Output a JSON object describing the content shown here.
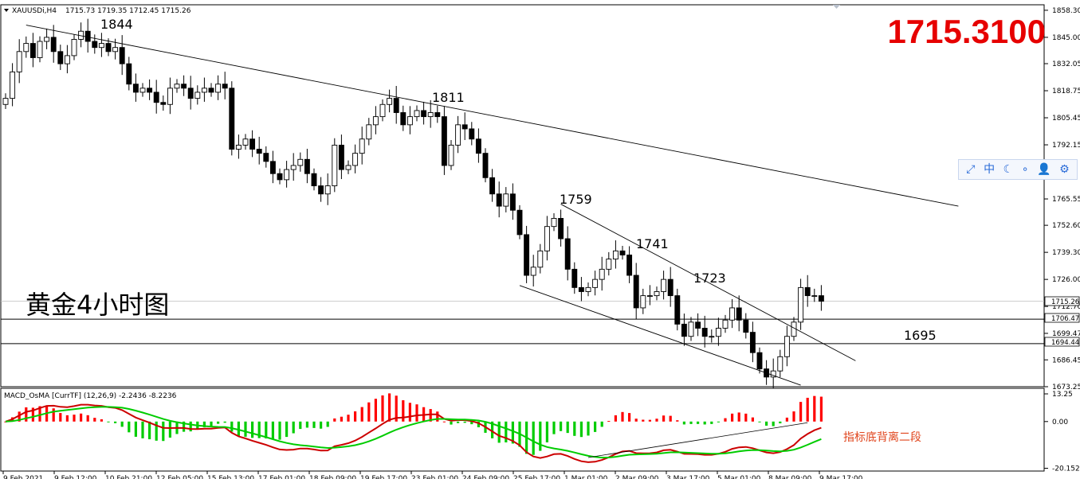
{
  "header": {
    "symbol": "XAUUSDi,H4",
    "ohlc": "1715.73 1719.35 1712.45 1715.26"
  },
  "overlay": {
    "price_big": "1715.3100",
    "chart_label": "黄金4小时图",
    "divergence_note": "指标底背离二段"
  },
  "price_tags": {
    "current": "1715.26",
    "level1": "1706.47",
    "level2": "1694.44"
  },
  "toolbar": {
    "icons": [
      "resize-icon",
      "chinese-char-icon",
      "moon-icon",
      "dots-icon",
      "user-icon",
      "gear-icon"
    ],
    "chinese_label": "中"
  },
  "colors": {
    "bull_candle": "#ffffff",
    "bear_candle": "#000000",
    "macd_hist": "#ff0000",
    "macd_line": "#cc0000",
    "signal_line": "#00cc00",
    "annotation": "#e60000",
    "label_orange": "#e0461e"
  },
  "chart_data": [
    {
      "type": "candlestick",
      "timeframe": "H4",
      "price_axis": {
        "ylim": [
          1673.25,
          1861
        ],
        "ticks": [
          "1858.30",
          "1845.00",
          "1832.05",
          "1818.75",
          "1805.45",
          "1792.15",
          "1765.55",
          "1752.60",
          "1739.30",
          "1726.00",
          "1712.70",
          "1699.47",
          "1686.45",
          "1673.25"
        ]
      },
      "time_axis_labels": [
        "9 Feb 2021",
        "9 Feb 12:00",
        "10 Feb 21:00",
        "12 Feb 05:00",
        "15 Feb 13:00",
        "17 Feb 01:00",
        "18 Feb 09:00",
        "19 Feb 17:00",
        "23 Feb 01:00",
        "24 Feb 09:00",
        "25 Feb 17:00",
        "1 Mar 01:00",
        "2 Mar 09:00",
        "3 Mar 17:00",
        "5 Mar 01:00",
        "8 Mar 09:00",
        "9 Mar 17:00"
      ],
      "annotations": [
        "1844",
        "1811",
        "1759",
        "1741",
        "1723",
        "1695"
      ],
      "horizontal_levels": [
        1715.26,
        1706.47,
        1694.44
      ],
      "closes": [
        1815,
        1828,
        1838,
        1842,
        1835,
        1843,
        1845,
        1838,
        1832,
        1836,
        1844,
        1848,
        1843,
        1840,
        1842,
        1838,
        1840,
        1832,
        1822,
        1818,
        1820,
        1818,
        1813,
        1812,
        1820,
        1822,
        1820,
        1815,
        1818,
        1820,
        1818,
        1822,
        1820,
        1790,
        1792,
        1795,
        1790,
        1788,
        1784,
        1778,
        1775,
        1780,
        1782,
        1785,
        1778,
        1772,
        1768,
        1772,
        1792,
        1780,
        1782,
        1788,
        1795,
        1802,
        1806,
        1812,
        1815,
        1808,
        1802,
        1806,
        1809,
        1806,
        1808,
        1806,
        1782,
        1792,
        1802,
        1800,
        1795,
        1788,
        1776,
        1768,
        1762,
        1768,
        1760,
        1748,
        1728,
        1732,
        1740,
        1752,
        1756,
        1746,
        1731,
        1722,
        1720,
        1722,
        1726,
        1731,
        1736,
        1740,
        1738,
        1728,
        1712,
        1718,
        1718,
        1720,
        1726,
        1718,
        1704,
        1698,
        1705,
        1702,
        1698,
        1698,
        1702,
        1706,
        1712,
        1706,
        1700,
        1690,
        1682,
        1678,
        1681,
        1688,
        1698,
        1705,
        1722,
        1718,
        1718,
        1715.26
      ]
    },
    {
      "type": "macd",
      "name": "MACD_OsMA [CurrTF] (12,26,9) -2.2436 -8.2236",
      "params": [
        12,
        26,
        9
      ],
      "values_printed": [
        -2.2436,
        -8.2236
      ],
      "ylim": [
        -21,
        14
      ],
      "ticks": [
        "13.25",
        "0.00",
        "-20.1520"
      ]
    }
  ]
}
